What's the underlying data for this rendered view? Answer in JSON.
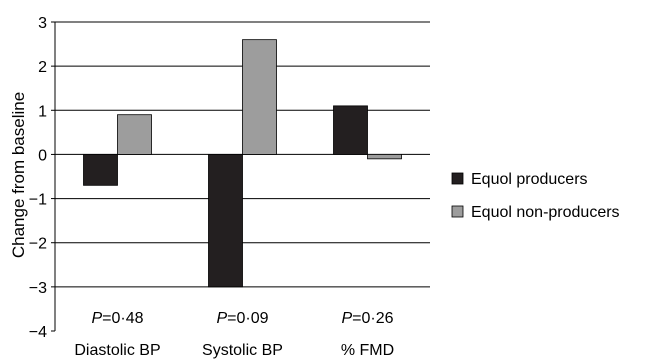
{
  "chart_data": {
    "type": "bar",
    "title": "",
    "xlabel": "",
    "ylabel": "Change from baseline",
    "ylim": [
      -4,
      3
    ],
    "yticks": [
      "3",
      "2",
      "1",
      "0",
      "−1",
      "−2",
      "−3",
      "−4"
    ],
    "categories": [
      "Diastolic BP",
      "Systolic BP",
      "% FMD"
    ],
    "series": [
      {
        "name": "Equol producers",
        "color": "#231f20",
        "values": [
          -0.7,
          -3.0,
          1.1
        ]
      },
      {
        "name": "Equol non-producers",
        "color": "#9d9d9d",
        "values": [
          0.9,
          2.6,
          -0.1
        ]
      }
    ],
    "annotations": [
      {
        "p_label": "P",
        "p_value": "=0·48"
      },
      {
        "p_label": "P",
        "p_value": "=0·09"
      },
      {
        "p_label": "P",
        "p_value": "=0·26"
      }
    ],
    "grid": true,
    "legend_position": "right"
  }
}
